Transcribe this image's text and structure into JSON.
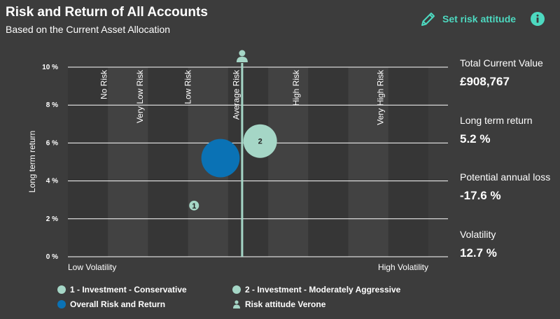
{
  "header": {
    "title": "Risk and Return of All Accounts",
    "subtitle": "Based on the Current Asset Allocation",
    "set_risk_label": "Set risk attitude",
    "pencil_icon": "pencil-icon",
    "info_icon": "info-icon",
    "accent": "#4dd9c0"
  },
  "stats": [
    {
      "label": "Total Current Value",
      "value": "£908,767"
    },
    {
      "label": "Long term return",
      "value": "5.2 %"
    },
    {
      "label": "Potential annual loss",
      "value": "-17.6 %"
    },
    {
      "label": "Volatility",
      "value": "12.7 %"
    }
  ],
  "chart_data": {
    "type": "scatter",
    "ylabel": "Long term return",
    "xlabel_left": "Low Volatility",
    "xlabel_right": "High Volatility",
    "ylim": [
      0,
      10
    ],
    "yticks": [
      "0 %",
      "2 %",
      "4 %",
      "6 %",
      "8 %",
      "10 %"
    ],
    "xlim": [
      0,
      30
    ],
    "grid": true,
    "risk_bands": [
      {
        "label": "No Risk",
        "x": 3
      },
      {
        "label": "Very Low Risk",
        "x": 6
      },
      {
        "label": "Low Risk",
        "x": 10
      },
      {
        "label": "Average Risk",
        "x": 14
      },
      {
        "label": "High Risk",
        "x": 19
      },
      {
        "label": "Very High Risk",
        "x": 26
      }
    ],
    "risk_attitude_x": 14.5,
    "series": [
      {
        "name": "1 - Investment - Conservative",
        "marker_label": "1",
        "x": 10.5,
        "y": 2.7,
        "size": 1,
        "color": "#a5d6c6"
      },
      {
        "name": "2 - Investment - Moderately Aggressive",
        "marker_label": "2",
        "x": 16,
        "y": 6.1,
        "size": 3.5,
        "color": "#a5d6c6"
      },
      {
        "name": "Overall Risk and Return",
        "marker_label": "",
        "x": 12.7,
        "y": 5.2,
        "size": 4,
        "color": "#0a72b5"
      }
    ],
    "risk_attitude_legend": "Risk attitude Verone",
    "colors": {
      "band_dark": "#363636",
      "band_light": "#424242",
      "grid": "#ffffff",
      "attitude_line": "#a5d6c6"
    }
  }
}
